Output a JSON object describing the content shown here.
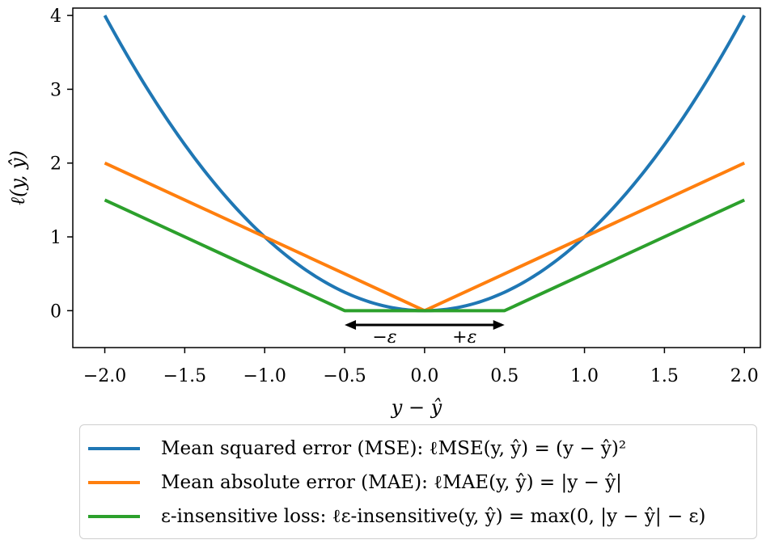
{
  "chart_data": {
    "type": "line",
    "title": "",
    "xlabel": "y − ŷ",
    "ylabel": "ℓ(y, ŷ)",
    "xlim": [
      -2.2,
      2.1
    ],
    "ylim": [
      -0.5,
      4.1
    ],
    "xticks": [
      -2.0,
      -1.5,
      -1.0,
      -0.5,
      0.0,
      0.5,
      1.0,
      1.5,
      2.0
    ],
    "xtick_labels": [
      "−2.0",
      "−1.5",
      "−1.0",
      "−0.5",
      "0.0",
      "0.5",
      "1.0",
      "1.5",
      "2.0"
    ],
    "yticks": [
      0,
      1,
      2,
      3,
      4
    ],
    "ytick_labels": [
      "0",
      "1",
      "2",
      "3",
      "4"
    ],
    "grid": false,
    "legend_position": "below",
    "epsilon": 0.5,
    "series": [
      {
        "name": "Mean squared error (MSE): ℓMSE(y, ŷ) = (y − ŷ)²",
        "color": "#1f77b4",
        "x": [
          -2.0,
          -1.75,
          -1.5,
          -1.25,
          -1.0,
          -0.75,
          -0.5,
          -0.25,
          0.0,
          0.25,
          0.5,
          0.75,
          1.0,
          1.25,
          1.5,
          1.75,
          2.0
        ],
        "y": [
          4.0,
          3.0625,
          2.25,
          1.5625,
          1.0,
          0.5625,
          0.25,
          0.0625,
          0.0,
          0.0625,
          0.25,
          0.5625,
          1.0,
          1.5625,
          2.25,
          3.0625,
          4.0
        ]
      },
      {
        "name": "Mean absolute error (MAE): ℓMAE(y, ŷ) = |y − ŷ|",
        "color": "#ff7f0e",
        "x": [
          -2.0,
          0.0,
          2.0
        ],
        "y": [
          2.0,
          0.0,
          2.0
        ]
      },
      {
        "name": "ε-insensitive loss: ℓε-insensitive(y, ŷ) = max(0, |y − ŷ| − ε)",
        "color": "#2ca02c",
        "x": [
          -2.0,
          -0.5,
          0.5,
          2.0
        ],
        "y": [
          1.5,
          0.0,
          0.0,
          1.5
        ]
      }
    ],
    "annotations": {
      "minus_epsilon": "−ε",
      "plus_epsilon": "+ε",
      "arrow_range": [
        -0.5,
        0.5
      ]
    }
  }
}
